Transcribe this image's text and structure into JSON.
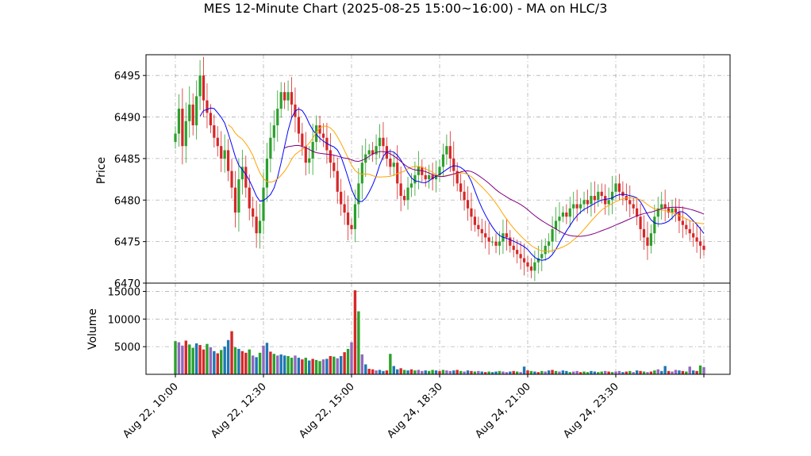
{
  "chart_data": {
    "type": "candlestick",
    "title": "MES 12-Minute Chart (2025-08-25 15:00~16:00) - MA on HLC/3",
    "price_panel": {
      "ylabel": "Price",
      "ylim": [
        6470,
        6497.5
      ],
      "yticks": [
        6470,
        6475,
        6480,
        6485,
        6490,
        6495
      ]
    },
    "volume_panel": {
      "ylabel": "Volume",
      "ylim": [
        0,
        16500
      ],
      "yticks": [
        5000,
        10000,
        15000
      ],
      "ytick_labels": [
        "5000",
        "10000",
        "15000"
      ]
    },
    "x_axis": {
      "tick_labels": [
        "Aug 22, 10:00",
        "Aug 22, 12:30",
        "Aug 22, 15:00",
        "Aug 24, 18:30",
        "Aug 24, 21:00",
        "Aug 24, 23:30"
      ],
      "tick_bar_index": [
        0,
        25,
        50,
        75,
        100,
        125
      ]
    },
    "grid": true,
    "colors": {
      "up": "#2ca02c",
      "down": "#d62728",
      "vol_alt": "#1f77b4",
      "vol_alt2": "#9467bd",
      "ma_fast": "#0000ff",
      "ma_mid": "#ffa500",
      "ma_slow": "#800080",
      "grid": "#b0b0b0"
    },
    "bar_count": 151,
    "close": [
      6488.0,
      6491.0,
      6486.5,
      6489.5,
      6491.5,
      6489.0,
      6492.5,
      6495.0,
      6492.0,
      6490.5,
      6489.0,
      6487.5,
      6486.5,
      6485.0,
      6486.0,
      6483.5,
      6481.5,
      6478.5,
      6482.5,
      6484.0,
      6481.5,
      6479.0,
      6478.0,
      6476.0,
      6477.5,
      6481.5,
      6485.0,
      6487.5,
      6489.0,
      6491.0,
      6493.0,
      6492.0,
      6493.0,
      6491.5,
      6490.0,
      6488.0,
      6486.5,
      6484.5,
      6485.0,
      6487.0,
      6489.0,
      6488.0,
      6487.5,
      6486.0,
      6484.5,
      6483.5,
      6481.0,
      6479.5,
      6478.5,
      6477.0,
      6476.5,
      6479.5,
      6482.0,
      6484.5,
      6485.5,
      6486.0,
      6485.5,
      6486.5,
      6487.5,
      6486.5,
      6485.0,
      6484.0,
      6484.5,
      6482.0,
      6480.5,
      6480.0,
      6481.5,
      6482.0,
      6483.0,
      6484.0,
      6483.0,
      6482.5,
      6483.0,
      6482.5,
      6483.0,
      6484.0,
      6485.5,
      6486.5,
      6485.0,
      6483.5,
      6482.0,
      6481.0,
      6480.0,
      6479.0,
      6478.0,
      6477.0,
      6476.5,
      6476.0,
      6475.5,
      6475.0,
      6475.0,
      6474.5,
      6475.0,
      6476.0,
      6475.5,
      6474.5,
      6474.0,
      6473.5,
      6473.0,
      6472.5,
      6472.0,
      6471.5,
      6472.5,
      6473.0,
      6473.5,
      6474.5,
      6475.0,
      6476.5,
      6477.5,
      6478.0,
      6478.5,
      6478.0,
      6479.0,
      6479.5,
      6479.0,
      6479.5,
      6480.0,
      6479.5,
      6480.5,
      6480.0,
      6481.0,
      6480.5,
      6479.5,
      6480.0,
      6481.0,
      6482.0,
      6481.0,
      6480.5,
      6480.0,
      6479.5,
      6479.0,
      6478.0,
      6476.5,
      6475.5,
      6474.5,
      6476.0,
      6478.0,
      6479.0,
      6479.5,
      6479.0,
      6478.5,
      6479.0,
      6478.5,
      6477.5,
      6477.0,
      6476.5,
      6476.0,
      6475.5,
      6475.0,
      6474.5,
      6474.0
    ],
    "volume": [
      6000,
      5800,
      5200,
      6100,
      5400,
      4800,
      5600,
      5300,
      4500,
      5500,
      4900,
      4200,
      3800,
      4400,
      5000,
      6200,
      7800,
      4900,
      4600,
      4200,
      3900,
      4500,
      3400,
      3100,
      3900,
      5200,
      5700,
      4100,
      3700,
      3400,
      3600,
      3400,
      3300,
      3000,
      3400,
      3000,
      2700,
      3000,
      2500,
      2800,
      2600,
      2400,
      2700,
      2800,
      3300,
      3200,
      2900,
      3300,
      4000,
      4600,
      5800,
      15200,
      11400,
      3600,
      1800,
      1000,
      900,
      700,
      800,
      600,
      700,
      3700,
      1500,
      900,
      1100,
      800,
      700,
      900,
      700,
      800,
      600,
      700,
      600,
      800,
      700,
      600,
      800,
      700,
      600,
      700,
      800,
      600,
      500,
      700,
      600,
      500,
      600,
      500,
      400,
      500,
      400,
      500,
      600,
      500,
      400,
      500,
      600,
      500,
      400,
      1400,
      700,
      600,
      500,
      400,
      600,
      500,
      700,
      800,
      600,
      500,
      700,
      600,
      400,
      500,
      600,
      400,
      500,
      400,
      600,
      500,
      400,
      500,
      600,
      500,
      400,
      500,
      600,
      400,
      500,
      600,
      400,
      700,
      600,
      500,
      400,
      500,
      700,
      900,
      600,
      1500,
      600,
      500,
      800,
      700,
      600,
      500,
      1400,
      700,
      600,
      1600,
      1300
    ]
  }
}
